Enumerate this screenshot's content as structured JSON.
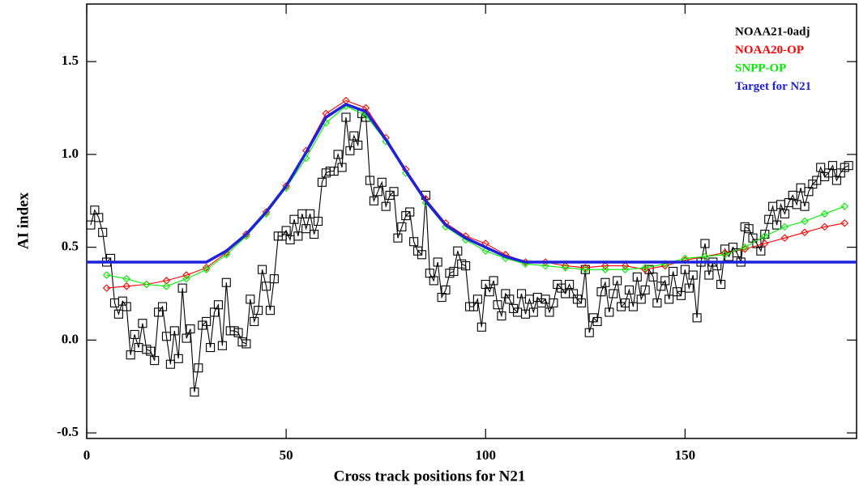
{
  "chart_data": {
    "type": "line",
    "xlabel": "Cross track positions for N21",
    "ylabel": "AI index",
    "xlim": [
      0,
      193
    ],
    "ylim": [
      -0.53,
      1.81
    ],
    "xticks": [
      0,
      50,
      100,
      150
    ],
    "yticks": [
      -0.5,
      {
        "value": 0,
        "label": "0.0"
      },
      0.5,
      {
        "value": 1,
        "label": "1.0"
      },
      1.5
    ],
    "legend": "upper right",
    "series": [
      {
        "name": "NOAA21-0adj",
        "color": "#000000",
        "marker": "square",
        "x": [
          1,
          2,
          3,
          4,
          5,
          6,
          7,
          8,
          9,
          10,
          11,
          12,
          13,
          14,
          15,
          16,
          17,
          18,
          19,
          20,
          21,
          22,
          23,
          24,
          25,
          26,
          27,
          28,
          29,
          30,
          31,
          32,
          33,
          34,
          35,
          36,
          37,
          38,
          39,
          40,
          41,
          42,
          43,
          44,
          45,
          46,
          47,
          48,
          49,
          50,
          51,
          52,
          53,
          54,
          55,
          56,
          57,
          58,
          59,
          60,
          61,
          62,
          63,
          64,
          65,
          66,
          67,
          68,
          69,
          70,
          71,
          72,
          73,
          74,
          75,
          76,
          77,
          78,
          79,
          80,
          81,
          82,
          83,
          84,
          85,
          86,
          87,
          88,
          89,
          90,
          91,
          92,
          93,
          94,
          95,
          96,
          97,
          98,
          99,
          100,
          101,
          102,
          103,
          104,
          105,
          106,
          107,
          108,
          109,
          110,
          111,
          112,
          113,
          114,
          115,
          116,
          117,
          118,
          119,
          120,
          121,
          122,
          123,
          124,
          125,
          126,
          127,
          128,
          129,
          130,
          131,
          132,
          133,
          134,
          135,
          136,
          137,
          138,
          139,
          140,
          141,
          142,
          143,
          144,
          145,
          146,
          147,
          148,
          149,
          150,
          151,
          152,
          153,
          154,
          155,
          156,
          157,
          158,
          159,
          160,
          161,
          162,
          163,
          164,
          165,
          166,
          167,
          168,
          169,
          170,
          171,
          172,
          173,
          174,
          175,
          176,
          177,
          178,
          179,
          180,
          181,
          182,
          183,
          184,
          185,
          186,
          187,
          188,
          189,
          190,
          191
        ],
        "values": [
          0.62,
          0.7,
          0.66,
          0.58,
          0.42,
          0.44,
          0.2,
          0.14,
          0.21,
          0.18,
          -0.08,
          0.03,
          -0.04,
          0.09,
          -0.05,
          -0.06,
          -0.11,
          0.15,
          0.18,
          0.02,
          -0.13,
          0.05,
          -0.1,
          0.28,
          0.01,
          0.06,
          -0.28,
          -0.15,
          0.08,
          0.1,
          -0.04,
          0.15,
          0.19,
          -0.03,
          0.31,
          0.05,
          0.05,
          0.04,
          -0.01,
          -0.02,
          0.22,
          0.1,
          0.16,
          0.38,
          0.29,
          0.16,
          0.33,
          0.56,
          0.56,
          0.59,
          0.54,
          0.65,
          0.56,
          0.68,
          0.6,
          0.68,
          0.57,
          0.64,
          0.85,
          0.9,
          0.91,
          0.91,
          1.0,
          0.93,
          1.2,
          1.02,
          1.1,
          1.05,
          1.22,
          1.2,
          0.86,
          0.75,
          0.8,
          0.85,
          0.72,
          0.78,
          0.8,
          0.55,
          0.61,
          0.67,
          0.69,
          0.53,
          0.48,
          0.46,
          0.78,
          0.36,
          0.32,
          0.42,
          0.23,
          0.27,
          0.36,
          0.37,
          0.48,
          0.41,
          0.4,
          0.18,
          0.18,
          0.22,
          0.07,
          0.3,
          0.26,
          0.32,
          0.19,
          0.13,
          0.25,
          0.22,
          0.17,
          0.15,
          0.25,
          0.14,
          0.22,
          0.15,
          0.23,
          0.2,
          0.22,
          0.15,
          0.2,
          0.3,
          0.28,
          0.25,
          0.3,
          0.25,
          0.22,
          0.2,
          0.38,
          0.04,
          0.12,
          0.1,
          0.26,
          0.31,
          0.15,
          0.25,
          0.32,
          0.18,
          0.2,
          0.27,
          0.18,
          0.34,
          0.22,
          0.27,
          0.38,
          0.34,
          0.2,
          0.29,
          0.32,
          0.22,
          0.37,
          0.26,
          0.24,
          0.38,
          0.28,
          0.35,
          0.12,
          0.42,
          0.52,
          0.35,
          0.42,
          0.4,
          0.3,
          0.49,
          0.45,
          0.5,
          0.47,
          0.42,
          0.61,
          0.6,
          0.55,
          0.52,
          0.48,
          0.57,
          0.65,
          0.72,
          0.62,
          0.73,
          0.68,
          0.74,
          0.78,
          0.73,
          0.82,
          0.72,
          0.8,
          0.84,
          0.86,
          0.93,
          0.88,
          0.9,
          0.94,
          0.86,
          0.9,
          0.93,
          0.94
        ]
      },
      {
        "name": "NOAA20-OP",
        "color": "#ff0000",
        "marker": "diamond",
        "x": [
          5,
          10,
          15,
          20,
          25,
          30,
          35,
          40,
          45,
          50,
          55,
          60,
          65,
          70,
          75,
          80,
          85,
          90,
          95,
          100,
          105,
          110,
          115,
          120,
          125,
          130,
          135,
          140,
          145,
          150,
          155,
          160,
          165,
          170,
          175,
          180,
          185,
          190
        ],
        "values": [
          0.28,
          0.29,
          0.3,
          0.32,
          0.35,
          0.39,
          0.47,
          0.57,
          0.69,
          0.83,
          1.02,
          1.22,
          1.29,
          1.25,
          1.09,
          0.92,
          0.76,
          0.63,
          0.56,
          0.52,
          0.46,
          0.42,
          0.42,
          0.4,
          0.39,
          0.4,
          0.4,
          0.38,
          0.4,
          0.43,
          0.45,
          0.47,
          0.49,
          0.52,
          0.55,
          0.58,
          0.61,
          0.63
        ]
      },
      {
        "name": "SNPP-OP",
        "color": "#00ee00",
        "marker": "diamond",
        "x": [
          5,
          10,
          15,
          20,
          25,
          30,
          35,
          40,
          45,
          50,
          55,
          60,
          65,
          70,
          75,
          80,
          85,
          90,
          95,
          100,
          105,
          110,
          115,
          120,
          125,
          130,
          135,
          140,
          145,
          150,
          155,
          160,
          165,
          170,
          175,
          180,
          185,
          190
        ],
        "values": [
          0.35,
          0.33,
          0.3,
          0.29,
          0.33,
          0.38,
          0.46,
          0.56,
          0.68,
          0.82,
          0.98,
          1.17,
          1.26,
          1.21,
          1.07,
          0.9,
          0.74,
          0.61,
          0.54,
          0.48,
          0.44,
          0.41,
          0.4,
          0.39,
          0.38,
          0.38,
          0.38,
          0.39,
          0.41,
          0.44,
          0.45,
          0.46,
          0.5,
          0.56,
          0.61,
          0.64,
          0.68,
          0.72
        ]
      },
      {
        "name": "Target for N21",
        "color": "#2020dd",
        "marker": "none",
        "x": [
          0,
          30,
          35,
          40,
          45,
          50,
          55,
          60,
          65,
          70,
          75,
          80,
          85,
          90,
          95,
          100,
          105,
          110,
          193
        ],
        "values": [
          0.42,
          0.42,
          0.48,
          0.57,
          0.69,
          0.83,
          1.01,
          1.2,
          1.27,
          1.23,
          1.08,
          0.91,
          0.75,
          0.62,
          0.55,
          0.5,
          0.45,
          0.42,
          0.42
        ]
      }
    ]
  }
}
